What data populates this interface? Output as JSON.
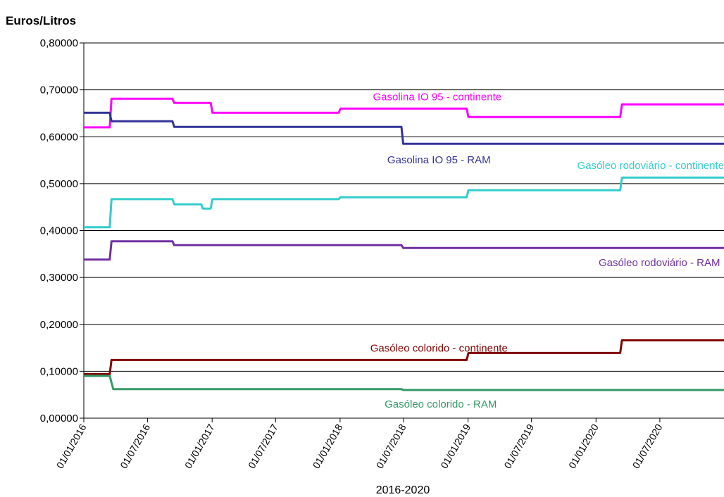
{
  "chart_data": {
    "type": "line",
    "ylabel": "Euros/Litros",
    "xlabel": "2016-2020",
    "ylim": [
      0,
      0.8
    ],
    "y_ticks": [
      0,
      0.1,
      0.2,
      0.3,
      0.4,
      0.5,
      0.6,
      0.7,
      0.8
    ],
    "y_tick_labels": [
      "0,00000",
      "0,10000",
      "0,20000",
      "0,30000",
      "0,40000",
      "0,50000",
      "0,60000",
      "0,70000",
      "0,80000"
    ],
    "xlim": [
      "2016-01-01",
      "2020-12-31"
    ],
    "x_ticks": [
      "2016-01-01",
      "2016-07-01",
      "2017-01-01",
      "2017-07-01",
      "2018-01-01",
      "2018-07-01",
      "2019-01-01",
      "2019-07-01",
      "2020-01-01",
      "2020-07-01"
    ],
    "x_tick_labels": [
      "01/01/2016",
      "01/07/2016",
      "01/01/2017",
      "01/07/2017",
      "01/01/2018",
      "01/07/2018",
      "01/01/2019",
      "01/07/2019",
      "01/01/2020",
      "01/07/2020"
    ],
    "grid": "horizontal",
    "legend": "none",
    "series": [
      {
        "name": "Gasolina IO 95 - continente",
        "color": "#ff00ff",
        "points": [
          [
            "2016-01-01",
            0.62
          ],
          [
            "2016-03-15",
            0.62
          ],
          [
            "2016-03-20",
            0.681
          ],
          [
            "2016-09-10",
            0.681
          ],
          [
            "2016-09-15",
            0.672
          ],
          [
            "2016-12-28",
            0.672
          ],
          [
            "2017-01-02",
            0.651
          ],
          [
            "2017-12-28",
            0.651
          ],
          [
            "2018-01-02",
            0.66
          ],
          [
            "2018-12-28",
            0.66
          ],
          [
            "2019-01-02",
            0.642
          ],
          [
            "2020-03-10",
            0.642
          ],
          [
            "2020-03-15",
            0.669
          ],
          [
            "2020-12-31",
            0.669
          ]
        ]
      },
      {
        "name": "Gasolina IO 95 - RAM",
        "color": "#333399",
        "points": [
          [
            "2016-01-01",
            0.651
          ],
          [
            "2016-03-15",
            0.651
          ],
          [
            "2016-03-20",
            0.633
          ],
          [
            "2016-09-10",
            0.633
          ],
          [
            "2016-09-15",
            0.621
          ],
          [
            "2018-06-25",
            0.621
          ],
          [
            "2018-06-30",
            0.585
          ],
          [
            "2020-12-31",
            0.585
          ]
        ]
      },
      {
        "name": "Gasóleo rodoviário - continente",
        "color": "#33cccc",
        "points": [
          [
            "2016-01-01",
            0.407
          ],
          [
            "2016-03-15",
            0.407
          ],
          [
            "2016-03-20",
            0.467
          ],
          [
            "2016-09-10",
            0.467
          ],
          [
            "2016-09-15",
            0.456
          ],
          [
            "2016-12-01",
            0.456
          ],
          [
            "2016-12-05",
            0.447
          ],
          [
            "2016-12-28",
            0.447
          ],
          [
            "2017-01-02",
            0.467
          ],
          [
            "2017-12-28",
            0.467
          ],
          [
            "2018-01-02",
            0.471
          ],
          [
            "2018-12-28",
            0.471
          ],
          [
            "2019-01-02",
            0.486
          ],
          [
            "2020-03-10",
            0.486
          ],
          [
            "2020-03-15",
            0.513
          ],
          [
            "2020-12-31",
            0.513
          ]
        ]
      },
      {
        "name": "Gasóleo rodoviário - RAM",
        "color": "#7030a0",
        "points": [
          [
            "2016-01-01",
            0.338
          ],
          [
            "2016-03-15",
            0.338
          ],
          [
            "2016-03-20",
            0.377
          ],
          [
            "2016-09-10",
            0.377
          ],
          [
            "2016-09-15",
            0.369
          ],
          [
            "2018-06-25",
            0.369
          ],
          [
            "2018-06-30",
            0.363
          ],
          [
            "2020-12-31",
            0.363
          ]
        ]
      },
      {
        "name": "Gasóleo colorido - continente",
        "color": "#800000",
        "points": [
          [
            "2016-01-01",
            0.094
          ],
          [
            "2016-03-15",
            0.094
          ],
          [
            "2016-03-20",
            0.124
          ],
          [
            "2018-12-28",
            0.124
          ],
          [
            "2019-01-02",
            0.139
          ],
          [
            "2020-03-10",
            0.139
          ],
          [
            "2020-03-15",
            0.166
          ],
          [
            "2020-12-31",
            0.166
          ]
        ]
      },
      {
        "name": "Gasóleo colorido - RAM",
        "color": "#339966",
        "points": [
          [
            "2016-01-01",
            0.09
          ],
          [
            "2016-03-15",
            0.09
          ],
          [
            "2016-03-25",
            0.062
          ],
          [
            "2018-06-25",
            0.062
          ],
          [
            "2018-06-30",
            0.06
          ],
          [
            "2020-12-31",
            0.06
          ]
        ]
      }
    ]
  }
}
